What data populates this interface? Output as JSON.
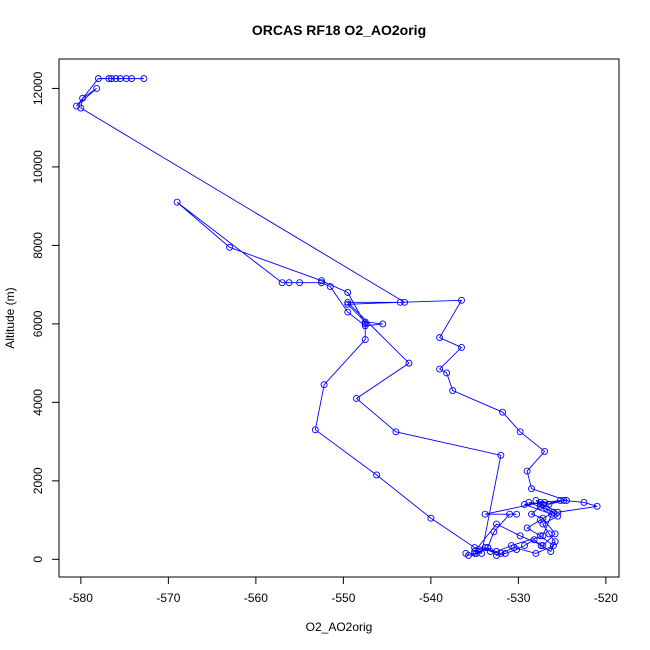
{
  "chart_data": {
    "type": "line",
    "title": "ORCAS RF18 O2_AO2orig",
    "xlabel": "O2_AO2orig",
    "ylabel": "Altitude (m)",
    "xlim": [
      -582.5,
      -518.5
    ],
    "ylim": [
      -450,
      12750
    ],
    "xticks": [
      -580,
      -570,
      -560,
      -550,
      -540,
      -530,
      -520
    ],
    "yticks": [
      0,
      2000,
      4000,
      6000,
      8000,
      10000,
      12000
    ],
    "grid": false,
    "markers": "open-circle",
    "series": [
      {
        "color": "#0000ff",
        "points": [
          [
            -536,
            150
          ],
          [
            -535.7,
            100
          ],
          [
            -534.8,
            150
          ],
          [
            -533.5,
            300
          ],
          [
            -532.5,
            100
          ],
          [
            -531.5,
            150
          ],
          [
            -530.2,
            250
          ],
          [
            -529.3,
            350
          ],
          [
            -528.2,
            500
          ],
          [
            -527.4,
            350
          ],
          [
            -526.3,
            200
          ],
          [
            -525.8,
            450
          ],
          [
            -526.5,
            650
          ],
          [
            -527.2,
            900
          ],
          [
            -525.5,
            1100
          ],
          [
            -526.8,
            1300
          ],
          [
            -528,
            1500
          ],
          [
            -526.5,
            1400
          ],
          [
            -524.8,
            1500
          ],
          [
            -522.5,
            1450
          ],
          [
            -521,
            1350
          ],
          [
            -525.5,
            1200
          ],
          [
            -527.2,
            1400
          ],
          [
            -528.8,
            1450
          ],
          [
            -526,
            1200
          ],
          [
            -527.5,
            1000
          ],
          [
            -529,
            800
          ],
          [
            -527.5,
            600
          ],
          [
            -526,
            350
          ],
          [
            -528,
            150
          ],
          [
            -530.5,
            300
          ],
          [
            -532,
            150
          ],
          [
            -533.2,
            200
          ],
          [
            -533.8,
            300
          ],
          [
            -534.5,
            250
          ],
          [
            -535,
            150
          ],
          [
            -533.5,
            300
          ],
          [
            -532.8,
            700
          ],
          [
            -531,
            1150
          ],
          [
            -530.2,
            1150
          ],
          [
            -533.8,
            1150
          ],
          [
            -527.5,
            1450
          ],
          [
            -524.5,
            1500
          ],
          [
            -528.5,
            1800
          ],
          [
            -529,
            2250
          ],
          [
            -527,
            2750
          ],
          [
            -529.8,
            3250
          ],
          [
            -531.8,
            3750
          ],
          [
            -537.5,
            4300
          ],
          [
            -538.2,
            4750
          ],
          [
            -539,
            4850
          ],
          [
            -536.5,
            5400
          ],
          [
            -539,
            5650
          ],
          [
            -536.5,
            6600
          ],
          [
            -543.5,
            6550
          ],
          [
            -549.5,
            6500
          ],
          [
            -547.5,
            6050
          ],
          [
            -545.5,
            6000
          ],
          [
            -547.5,
            5950
          ],
          [
            -549.5,
            6300
          ],
          [
            -551.5,
            6950
          ],
          [
            -552.5,
            7050
          ],
          [
            -555,
            7050
          ],
          [
            -556.2,
            7050
          ],
          [
            -557,
            7050
          ],
          [
            -569,
            9100
          ],
          [
            -563,
            7950
          ],
          [
            -552.5,
            7100
          ],
          [
            -549.5,
            6800
          ],
          [
            -547.5,
            6000
          ],
          [
            -547.5,
            5600
          ],
          [
            -552.2,
            4450
          ],
          [
            -553.2,
            3300
          ],
          [
            -546.2,
            2150
          ],
          [
            -540,
            1050
          ],
          [
            -535,
            300
          ],
          [
            -532.5,
            200
          ],
          [
            -530.8,
            350
          ],
          [
            -527.2,
            600
          ],
          [
            -526.2,
            1150
          ],
          [
            -529.3,
            1400
          ],
          [
            -527,
            1450
          ],
          [
            -525.2,
            1500
          ],
          [
            -527.5,
            1350
          ],
          [
            -528.5,
            1150
          ],
          [
            -527.2,
            1050
          ],
          [
            -525.8,
            650
          ],
          [
            -527.2,
            350
          ],
          [
            -529.8,
            600
          ],
          [
            -532.5,
            900
          ],
          [
            -535,
            200
          ],
          [
            -534.2,
            150
          ],
          [
            -532,
            2650
          ],
          [
            -544,
            3250
          ],
          [
            -548.5,
            4100
          ],
          [
            -542.5,
            5000
          ],
          [
            -549.5,
            6550
          ],
          [
            -543,
            6550
          ],
          [
            -580,
            11500
          ],
          [
            -579.8,
            11750
          ],
          [
            -578.2,
            12000
          ],
          [
            -580.5,
            11550
          ],
          [
            -578,
            12250
          ],
          [
            -576.5,
            12250
          ],
          [
            -575.5,
            12250
          ],
          [
            -574.2,
            12250
          ],
          [
            -572.8,
            12250
          ],
          [
            -574.8,
            12250
          ],
          [
            -576,
            12250
          ],
          [
            -576.8,
            12250
          ]
        ]
      }
    ]
  }
}
